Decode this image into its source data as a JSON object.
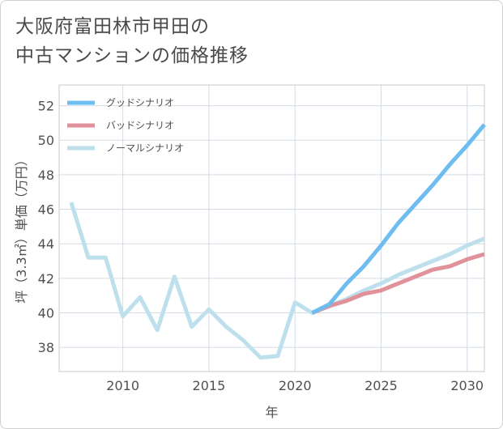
{
  "title_line1": "大阪府富田林市甲田の",
  "title_line2": "中古マンションの価格推移",
  "chart_data": {
    "type": "line",
    "xlabel": "年",
    "ylabel": "坪（3.3㎡）単価（万円）",
    "xlim": [
      2006.3,
      2031
    ],
    "ylim": [
      36.6,
      53.2
    ],
    "xticks": [
      2010,
      2015,
      2020,
      2025,
      2030
    ],
    "yticks": [
      38,
      40,
      42,
      44,
      46,
      48,
      50,
      52
    ],
    "grid": true,
    "legend_position": "top-left",
    "series": [
      {
        "name": "グッドシナリオ",
        "color": "#6dbdf0",
        "x": [
          2021,
          2022,
          2023,
          2024,
          2025,
          2026,
          2027,
          2028,
          2029,
          2030,
          2031
        ],
        "y": [
          40.0,
          40.5,
          41.7,
          42.7,
          43.9,
          45.2,
          46.3,
          47.4,
          48.6,
          49.7,
          50.9
        ]
      },
      {
        "name": "バッドシナリオ",
        "color": "#e0919a",
        "x": [
          2021,
          2022,
          2023,
          2024,
          2025,
          2026,
          2027,
          2028,
          2029,
          2030,
          2031
        ],
        "y": [
          40.0,
          40.4,
          40.7,
          41.1,
          41.3,
          41.7,
          42.1,
          42.5,
          42.7,
          43.1,
          43.4
        ]
      },
      {
        "name": "ノーマルシナリオ",
        "color": "#bde0ec",
        "x": [
          2007,
          2008,
          2009,
          2010,
          2011,
          2012,
          2013,
          2014,
          2015,
          2016,
          2017,
          2018,
          2019,
          2020,
          2021,
          2022,
          2023,
          2024,
          2025,
          2026,
          2027,
          2028,
          2029,
          2030,
          2031
        ],
        "y": [
          46.4,
          43.2,
          43.2,
          39.8,
          40.9,
          39.0,
          42.1,
          39.2,
          40.2,
          39.2,
          38.4,
          37.4,
          37.5,
          40.6,
          40.0,
          40.4,
          40.8,
          41.3,
          41.7,
          42.2,
          42.6,
          43.0,
          43.4,
          43.9,
          44.3
        ]
      }
    ]
  }
}
